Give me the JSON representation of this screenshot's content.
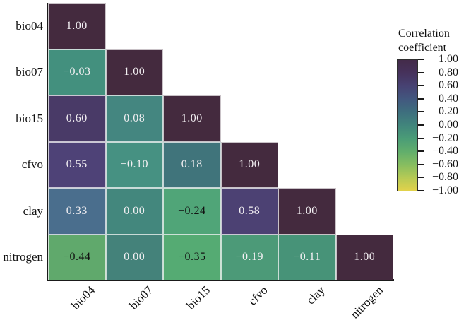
{
  "figure": {
    "background": "#ffffff",
    "axis_color": "#1a1a1a",
    "cell_text_light": "#f3f0f3",
    "cell_text_dark": "#121212"
  },
  "chart_data": {
    "type": "heatmap",
    "subtype": "lower-triangle-correlation-matrix",
    "title": "",
    "variables": [
      "bio04",
      "bio07",
      "bio15",
      "cfvo",
      "clay",
      "nitrogen"
    ],
    "matrix": [
      [
        1.0
      ],
      [
        -0.03,
        1.0
      ],
      [
        0.6,
        0.08,
        1.0
      ],
      [
        0.55,
        -0.1,
        0.18,
        1.0
      ],
      [
        0.33,
        0.0,
        -0.24,
        0.58,
        1.0
      ],
      [
        -0.44,
        0.0,
        -0.35,
        -0.19,
        -0.11,
        1.0
      ]
    ],
    "value_range": [
      -1.0,
      1.0
    ],
    "rows": [
      {
        "label": "bio04",
        "cells": [
          {
            "text": "1.00",
            "value": 1.0,
            "bg": "#442a3e",
            "fg": "#f3f0f3"
          }
        ]
      },
      {
        "label": "bio07",
        "cells": [
          {
            "text": "−0.03",
            "value": -0.03,
            "bg": "#43907e",
            "fg": "#f3f0f3"
          },
          {
            "text": "1.00",
            "value": 1.0,
            "bg": "#442a3e",
            "fg": "#f3f0f3"
          }
        ]
      },
      {
        "label": "bio15",
        "cells": [
          {
            "text": "0.60",
            "value": 0.6,
            "bg": "#493a67",
            "fg": "#f3f0f3"
          },
          {
            "text": "0.08",
            "value": 0.08,
            "bg": "#448680",
            "fg": "#f3f0f3"
          },
          {
            "text": "1.00",
            "value": 1.0,
            "bg": "#442a3e",
            "fg": "#f3f0f3"
          }
        ]
      },
      {
        "label": "cfvo",
        "cells": [
          {
            "text": "0.55",
            "value": 0.55,
            "bg": "#4e4277",
            "fg": "#f3f0f3"
          },
          {
            "text": "−0.10",
            "value": -0.1,
            "bg": "#469182",
            "fg": "#f3f0f3"
          },
          {
            "text": "0.18",
            "value": 0.18,
            "bg": "#40747b",
            "fg": "#f3f0f3"
          },
          {
            "text": "1.00",
            "value": 1.0,
            "bg": "#442a3e",
            "fg": "#f3f0f3"
          }
        ]
      },
      {
        "label": "clay",
        "cells": [
          {
            "text": "0.33",
            "value": 0.33,
            "bg": "#4a6e8d",
            "fg": "#f3f0f3"
          },
          {
            "text": "0.00",
            "value": 0.0,
            "bg": "#43877d",
            "fg": "#f3f0f3"
          },
          {
            "text": "−0.24",
            "value": -0.24,
            "bg": "#50a578",
            "fg": "#121212"
          },
          {
            "text": "0.58",
            "value": 0.58,
            "bg": "#4c4173",
            "fg": "#f3f0f3"
          },
          {
            "text": "1.00",
            "value": 1.0,
            "bg": "#442a3e",
            "fg": "#f3f0f3"
          }
        ]
      },
      {
        "label": "nitrogen",
        "cells": [
          {
            "text": "−0.44",
            "value": -0.44,
            "bg": "#60a96c",
            "fg": "#121212"
          },
          {
            "text": "0.00",
            "value": 0.0,
            "bg": "#44827a",
            "fg": "#f3f0f3"
          },
          {
            "text": "−0.35",
            "value": -0.35,
            "bg": "#55ab73",
            "fg": "#121212"
          },
          {
            "text": "−0.19",
            "value": -0.19,
            "bg": "#4c9a78",
            "fg": "#f3f0f3"
          },
          {
            "text": "−0.11",
            "value": -0.11,
            "bg": "#479378",
            "fg": "#f3f0f3"
          },
          {
            "text": "1.00",
            "value": 1.0,
            "bg": "#442a3e",
            "fg": "#f3f0f3"
          }
        ]
      }
    ],
    "legend": {
      "title_line1": "Correlation",
      "title_line2": "coefficient",
      "ticks": [
        "1.00",
        "0.80",
        "0.60",
        "0.40",
        "0.20",
        "0.00",
        "−0.20",
        "−0.40",
        "−0.60",
        "−0.80",
        "−1.00"
      ],
      "gradient": [
        "#432b49",
        "#46325c",
        "#474273",
        "#42587f",
        "#3e6f7e",
        "#41857c",
        "#4a9c77",
        "#61ae6c",
        "#86bd60",
        "#b6ca55",
        "#e2d24b"
      ],
      "position": "right"
    }
  }
}
